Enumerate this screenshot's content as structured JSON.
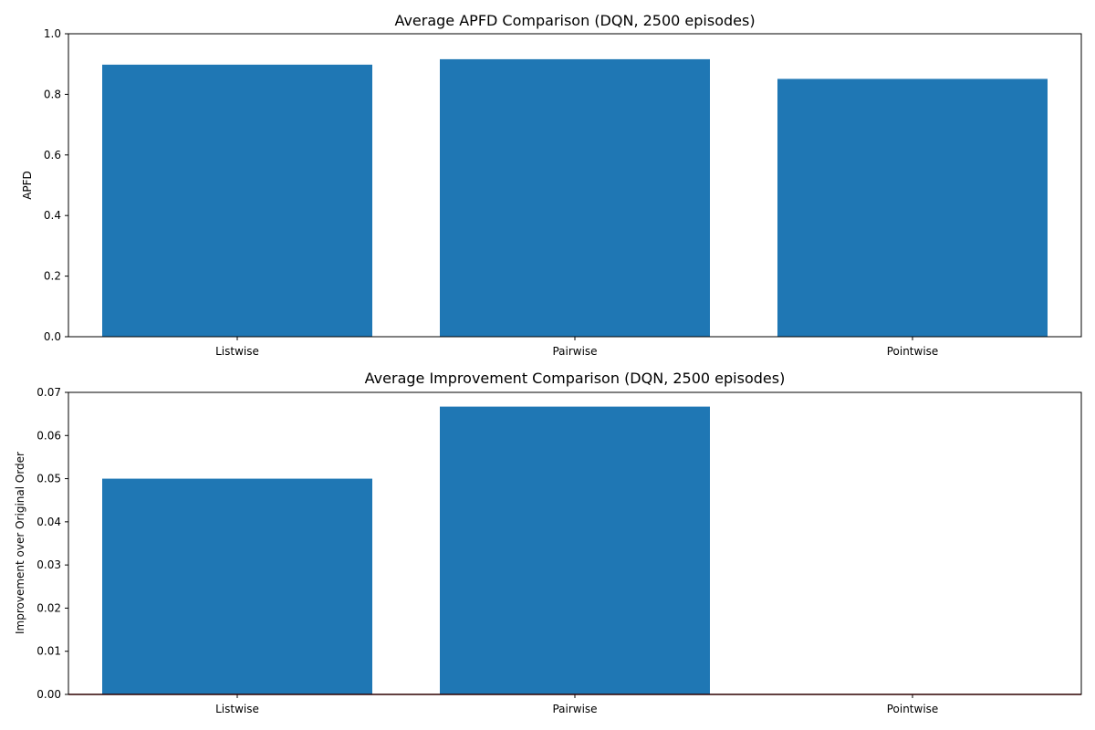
{
  "colors": {
    "bar": "#1f77b4",
    "zero_line": "#8b0000",
    "axis": "#000000",
    "background": "#ffffff"
  },
  "chart_data": [
    {
      "type": "bar",
      "title": "Average APFD Comparison (DQN, 2500 episodes)",
      "xlabel": "",
      "ylabel": "APFD",
      "categories": [
        "Listwise",
        "Pairwise",
        "Pointwise"
      ],
      "values": [
        0.898,
        0.916,
        0.851
      ],
      "ylim": [
        0,
        1.0
      ],
      "yticks": [
        0.0,
        0.2,
        0.4,
        0.6,
        0.8,
        1.0
      ],
      "ytick_labels": [
        "0.0",
        "0.2",
        "0.4",
        "0.6",
        "0.8",
        "1.0"
      ],
      "grid": false,
      "legend": "none"
    },
    {
      "type": "bar",
      "title": "Average Improvement Comparison (DQN, 2500 episodes)",
      "xlabel": "",
      "ylabel": "Improvement over Original Order",
      "categories": [
        "Listwise",
        "Pairwise",
        "Pointwise"
      ],
      "values": [
        0.05,
        0.0667,
        0.0
      ],
      "ylim": [
        0,
        0.07
      ],
      "yticks": [
        0.0,
        0.01,
        0.02,
        0.03,
        0.04,
        0.05,
        0.06,
        0.07
      ],
      "ytick_labels": [
        "0.00",
        "0.01",
        "0.02",
        "0.03",
        "0.04",
        "0.05",
        "0.06",
        "0.07"
      ],
      "reference_line": 0,
      "grid": false,
      "legend": "none"
    }
  ]
}
